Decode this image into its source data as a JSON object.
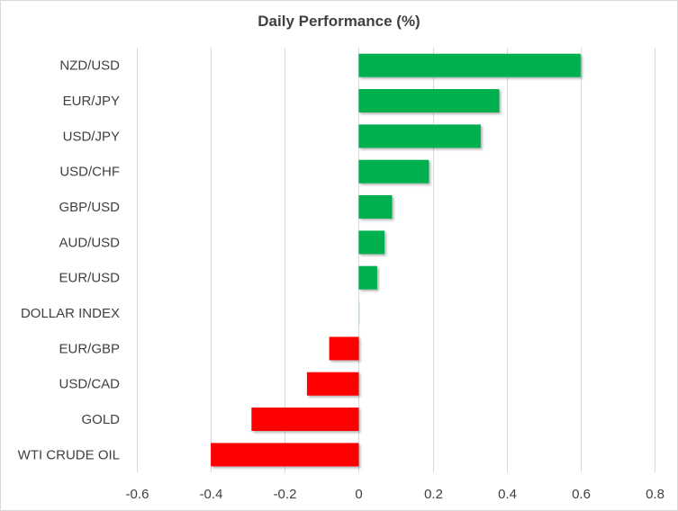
{
  "chart_data": {
    "type": "bar",
    "orientation": "horizontal",
    "title": "Daily Performance (%)",
    "xlabel": "",
    "ylabel": "",
    "categories": [
      "NZD/USD",
      "EUR/JPY",
      "USD/JPY",
      "USD/CHF",
      "GBP/USD",
      "AUD/USD",
      "EUR/USD",
      "DOLLAR INDEX",
      "EUR/GBP",
      "USD/CAD",
      "GOLD",
      "WTI CRUDE OIL"
    ],
    "values": [
      0.6,
      0.38,
      0.33,
      0.19,
      0.09,
      0.07,
      0.05,
      0.0,
      -0.08,
      -0.14,
      -0.29,
      -0.4
    ],
    "xlim": [
      -0.6,
      0.8
    ],
    "xticks": [
      -0.6,
      -0.4,
      -0.2,
      0,
      0.2,
      0.4,
      0.6,
      0.8
    ],
    "xtick_labels": [
      "-0.6",
      "-0.4",
      "-0.2",
      "0",
      "0.2",
      "0.4",
      "0.6",
      "0.8"
    ],
    "grid": "vertical",
    "legend": "none",
    "colors": {
      "positive": "#00b050",
      "negative": "#ff0000",
      "grid": "#d9d9d9",
      "text": "#404040"
    }
  }
}
